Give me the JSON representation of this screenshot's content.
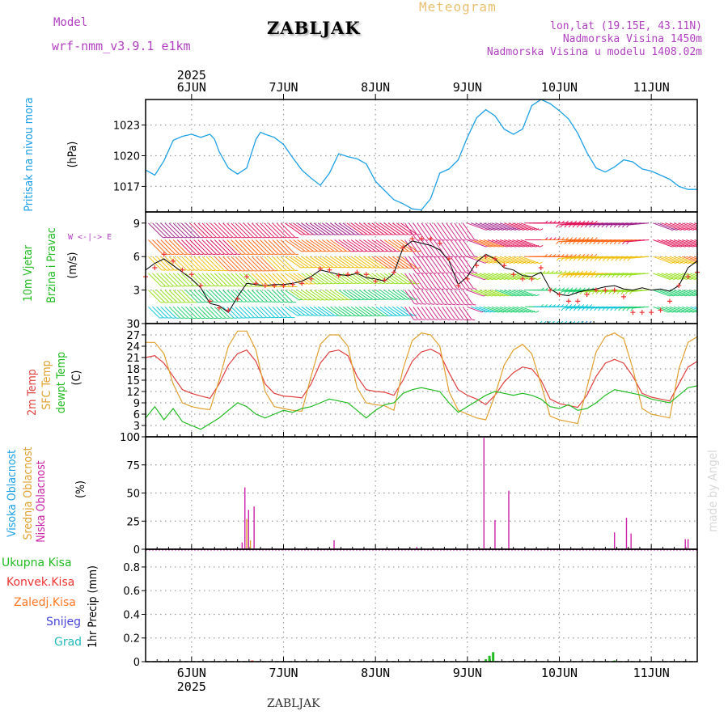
{
  "header": {
    "model_label": "Model",
    "model_name": "wrf-nmm_v3.9.1  e1km",
    "station": "ZABLJAK",
    "product": "Meteogram",
    "coords": "lon,lat (19.15E, 43.11N)",
    "elevation": "Nadmorska Visina 1450m",
    "model_elevation": "Nadmorska Visina u modelu 1408.02m",
    "watermark": "made by Angel",
    "footer_station": "ZABLJAK"
  },
  "colors": {
    "pressure": "#1ea0e6",
    "temp2m": "#e04040",
    "sfc_temp": "#e0a030",
    "dewpoint": "#22bb22",
    "high_cloud": "#1ea0e6",
    "mid_cloud": "#e0a030",
    "low_cloud": "#cc22aa",
    "wind_speed": "#000000",
    "gust_marker": "#ee3333",
    "purple_text": "#b040c0",
    "title_gold": "#e8c070",
    "total_precip": "#22bb22",
    "conv_precip": "#ee3333",
    "frozen_precip": "#ff7722",
    "snow": "#4444dd",
    "graupel": "#22bbbb"
  },
  "chart_data": [
    {
      "type": "line",
      "panel": "pressure",
      "ylabels": [
        "Pritisak na nivou mora",
        "(hPa)"
      ],
      "yticks": [
        1017,
        1020,
        1023
      ],
      "ylim": [
        1014.5,
        1025.5
      ],
      "x_days": [
        "6JUN",
        "7JUN",
        "8JUN",
        "9JUN",
        "10JUN",
        "11JUN"
      ],
      "x_year": "2025",
      "x_range_days": [
        -0.5,
        5.5
      ],
      "x": [
        -0.5,
        -0.4,
        -0.3,
        -0.2,
        -0.1,
        0,
        0.1,
        0.2,
        0.25,
        0.3,
        0.4,
        0.5,
        0.6,
        0.7,
        0.75,
        0.8,
        0.9,
        1,
        1.1,
        1.2,
        1.3,
        1.4,
        1.5,
        1.6,
        1.7,
        1.8,
        1.9,
        2,
        2.1,
        2.2,
        2.3,
        2.4,
        2.5,
        2.6,
        2.7,
        2.8,
        2.9,
        3,
        3.1,
        3.2,
        3.3,
        3.4,
        3.5,
        3.6,
        3.7,
        3.8,
        3.9,
        4,
        4.1,
        4.2,
        4.3,
        4.4,
        4.5,
        4.6,
        4.7,
        4.8,
        4.9,
        5,
        5.1,
        5.2,
        5.3,
        5.4,
        5.5
      ],
      "series": [
        {
          "name": "Pritisak na nivou mora",
          "values": [
            1018.6,
            1018.1,
            1019.5,
            1021.5,
            1021.9,
            1022.1,
            1021.8,
            1022.1,
            1021.6,
            1020.4,
            1018.8,
            1018.2,
            1018.8,
            1021.6,
            1022.3,
            1022.1,
            1021.8,
            1021.1,
            1019.8,
            1018.6,
            1017.8,
            1017.1,
            1018.3,
            1020.2,
            1019.9,
            1019.7,
            1019.2,
            1017.5,
            1016.6,
            1015.7,
            1015.3,
            1014.8,
            1014.7,
            1015.8,
            1018.3,
            1018.7,
            1019.6,
            1021.8,
            1023.7,
            1024.5,
            1023.9,
            1022.6,
            1022.1,
            1022.6,
            1024.9,
            1025.5,
            1025.1,
            1024.4,
            1023.6,
            1022.2,
            1020.3,
            1018.8,
            1018.4,
            1018.9,
            1019.6,
            1019.4,
            1018.7,
            1018.5,
            1018.1,
            1017.7,
            1017.0,
            1016.7,
            1016.7
          ]
        }
      ]
    },
    {
      "type": "line",
      "panel": "wind",
      "ylabels": [
        "10m Vjetar",
        "Brzina i Pravac",
        "(m/s)"
      ],
      "yticks": [
        0,
        3,
        6,
        9
      ],
      "ylim": [
        0,
        10
      ],
      "compass": "W <-|-> E",
      "x": [
        -0.5,
        -0.4,
        -0.3,
        -0.2,
        -0.1,
        0,
        0.1,
        0.2,
        0.3,
        0.4,
        0.5,
        0.6,
        0.7,
        0.8,
        0.9,
        1,
        1.1,
        1.2,
        1.3,
        1.4,
        1.5,
        1.6,
        1.7,
        1.8,
        1.9,
        2,
        2.1,
        2.2,
        2.3,
        2.4,
        2.5,
        2.6,
        2.7,
        2.8,
        2.9,
        3,
        3.1,
        3.2,
        3.3,
        3.4,
        3.5,
        3.6,
        3.7,
        3.8,
        3.9,
        4,
        4.1,
        4.2,
        4.3,
        4.4,
        4.5,
        4.6,
        4.7,
        4.8,
        4.9,
        5,
        5.1,
        5.2,
        5.3,
        5.4,
        5.5
      ],
      "series": [
        {
          "name": "wind_speed",
          "values": [
            4.8,
            5.4,
            5.8,
            5.2,
            4.6,
            4.0,
            3.2,
            1.8,
            1.6,
            1.0,
            2.4,
            3.6,
            3.5,
            3.4,
            3.5,
            3.5,
            3.6,
            3.8,
            4.2,
            4.8,
            4.6,
            4.4,
            4.3,
            4.5,
            4.1,
            4.0,
            3.8,
            4.5,
            6.8,
            7.4,
            7.2,
            7.0,
            6.6,
            5.6,
            3.5,
            4.2,
            5.5,
            6.2,
            5.8,
            5.0,
            4.8,
            4.3,
            4.2,
            4.6,
            3.1,
            2.6,
            2.5,
            2.8,
            3.0,
            3.1,
            3.3,
            3.4,
            3.1,
            3.0,
            3.2,
            3.0,
            3.1,
            2.9,
            3.4,
            5.0,
            5.6
          ]
        },
        {
          "name": "gust",
          "values": [
            4.2,
            5.0,
            6.2,
            5.6,
            4.8,
            4.4,
            3.4,
            2.0,
            1.4,
            1.2,
            2.2,
            4.2,
            3.6,
            3.4,
            3.4,
            3.4,
            3.5,
            3.6,
            4.0,
            4.9,
            4.8,
            4.3,
            4.4,
            4.6,
            4.4,
            3.8,
            3.9,
            4.6,
            6.8,
            7.6,
            7.6,
            7.6,
            7.2,
            5.8,
            3.4,
            4.0,
            5.2,
            6.0,
            5.8,
            5.2,
            4.4,
            4.0,
            4.0,
            5.0,
            3.0,
            2.6,
            2.0,
            2.0,
            2.6,
            3.0,
            3.0,
            3.0,
            2.4,
            1.0,
            1.0,
            1.0,
            1.2,
            2.0,
            3.4,
            4.2,
            4.6
          ]
        }
      ]
    },
    {
      "type": "line",
      "panel": "temperature",
      "ylabels": [
        "2m Temp",
        "SFC Temp",
        "dewpt Temp",
        "(C)"
      ],
      "yticks": [
        0,
        3,
        6,
        9,
        12,
        15,
        18,
        21,
        24,
        27,
        30
      ],
      "ylim": [
        0,
        30
      ],
      "x": [
        -0.5,
        -0.4,
        -0.3,
        -0.2,
        -0.1,
        0,
        0.1,
        0.2,
        0.3,
        0.4,
        0.5,
        0.6,
        0.7,
        0.8,
        0.9,
        1,
        1.1,
        1.2,
        1.3,
        1.4,
        1.5,
        1.6,
        1.7,
        1.8,
        1.9,
        2,
        2.1,
        2.2,
        2.3,
        2.4,
        2.5,
        2.6,
        2.7,
        2.8,
        2.9,
        3,
        3.1,
        3.2,
        3.3,
        3.4,
        3.5,
        3.6,
        3.7,
        3.8,
        3.9,
        4,
        4.1,
        4.2,
        4.3,
        4.4,
        4.5,
        4.6,
        4.7,
        4.8,
        4.9,
        5,
        5.1,
        5.2,
        5.3,
        5.4,
        5.5
      ],
      "series": [
        {
          "name": "2m Temp",
          "values": [
            21.0,
            21.5,
            19.5,
            16.0,
            12.5,
            11.5,
            10.8,
            10.2,
            14.0,
            19.0,
            22.0,
            23.0,
            20.0,
            14.0,
            11.5,
            10.8,
            10.6,
            10.3,
            14.0,
            19.5,
            22.5,
            23.0,
            21.5,
            16.0,
            12.5,
            12.0,
            11.8,
            11.0,
            15.0,
            20.0,
            22.5,
            23.2,
            22.0,
            17.0,
            12.5,
            11.0,
            10.0,
            8.5,
            11.0,
            14.5,
            17.0,
            18.5,
            18.0,
            15.0,
            10.0,
            8.8,
            8.3,
            7.8,
            11.0,
            16.0,
            19.5,
            20.5,
            19.5,
            16.0,
            11.5,
            10.5,
            10.0,
            9.5,
            14.0,
            18.5,
            20.0
          ]
        },
        {
          "name": "SFC Temp",
          "values": [
            25.0,
            25.0,
            22.0,
            14.0,
            9.0,
            8.0,
            7.5,
            7.2,
            15.0,
            24.0,
            28.0,
            28.0,
            23.0,
            12.0,
            8.0,
            7.5,
            7.0,
            6.8,
            16.0,
            24.5,
            27.0,
            27.0,
            24.0,
            13.0,
            9.0,
            8.5,
            8.2,
            7.0,
            18.0,
            25.5,
            27.5,
            27.0,
            24.0,
            12.0,
            7.0,
            6.0,
            5.0,
            4.5,
            11.0,
            19.0,
            23.0,
            24.5,
            22.0,
            14.0,
            5.5,
            4.5,
            4.0,
            3.5,
            13.0,
            22.5,
            26.5,
            27.5,
            26.0,
            18.0,
            7.5,
            6.0,
            5.5,
            5.0,
            18.0,
            25.0,
            26.5
          ]
        },
        {
          "name": "dewpt Temp",
          "values": [
            5.0,
            8.0,
            4.5,
            7.5,
            4.0,
            3.0,
            2.0,
            3.5,
            5.0,
            7.0,
            9.0,
            8.0,
            6.0,
            5.0,
            6.0,
            7.0,
            6.5,
            7.5,
            8.0,
            9.0,
            10.0,
            9.5,
            9.0,
            7.0,
            5.0,
            7.0,
            8.5,
            9.0,
            11.5,
            12.5,
            13.0,
            12.5,
            12.0,
            9.0,
            6.5,
            8.0,
            9.5,
            11.0,
            12.0,
            11.5,
            11.0,
            11.5,
            11.0,
            10.0,
            8.0,
            7.5,
            8.5,
            7.0,
            7.5,
            9.0,
            11.0,
            12.5,
            12.0,
            11.5,
            11.0,
            10.0,
            9.5,
            9.0,
            11.0,
            13.0,
            13.5
          ]
        }
      ]
    },
    {
      "type": "bar",
      "panel": "clouds",
      "ylabels": [
        "Visoka Oblacnost",
        "Srednja Oblacnost",
        "Niska Oblacnost",
        "(%)"
      ],
      "yticks": [
        0,
        25,
        50,
        75,
        100
      ],
      "ylim": [
        0,
        100
      ],
      "series": [
        {
          "name": "Niska Oblacnost",
          "x": [
            0.55,
            0.58,
            0.62,
            0.68,
            1.55,
            2.45,
            3.18,
            3.3,
            3.45,
            4.6,
            4.73,
            4.78,
            5.37,
            5.4
          ],
          "values": [
            6,
            55,
            35,
            38,
            8,
            2,
            99,
            26,
            52,
            15,
            28,
            14,
            9,
            9
          ]
        },
        {
          "name": "Srednja Oblacnost",
          "x": [
            0.6,
            0.64
          ],
          "values": [
            27,
            8
          ]
        },
        {
          "name": "Visoka Oblacnost",
          "x": [],
          "values": []
        }
      ]
    },
    {
      "type": "bar",
      "panel": "precipitation",
      "ylabels": [
        "1hr Precip (mm)"
      ],
      "legend": [
        "Ukupna Kisa",
        "Konvek.Kisa",
        "Zaledj.Kisa",
        "Snijeg",
        "Grad"
      ],
      "yticks": [
        0,
        0.2,
        0.4,
        0.6,
        0.8
      ],
      "ytick_labels": [
        "0",
        "0.2",
        "0.4",
        "0.6",
        "0.8"
      ],
      "ylim": [
        0,
        0.95
      ],
      "series": [
        {
          "name": "Ukupna Kisa",
          "x": [
            0.68,
            3.2,
            3.24,
            3.28,
            4.6
          ],
          "values": [
            0.005,
            0.02,
            0.05,
            0.08,
            0.01
          ]
        },
        {
          "name": "Konvek.Kisa",
          "x": [
            0.66
          ],
          "values": [
            0.01
          ]
        }
      ]
    }
  ]
}
